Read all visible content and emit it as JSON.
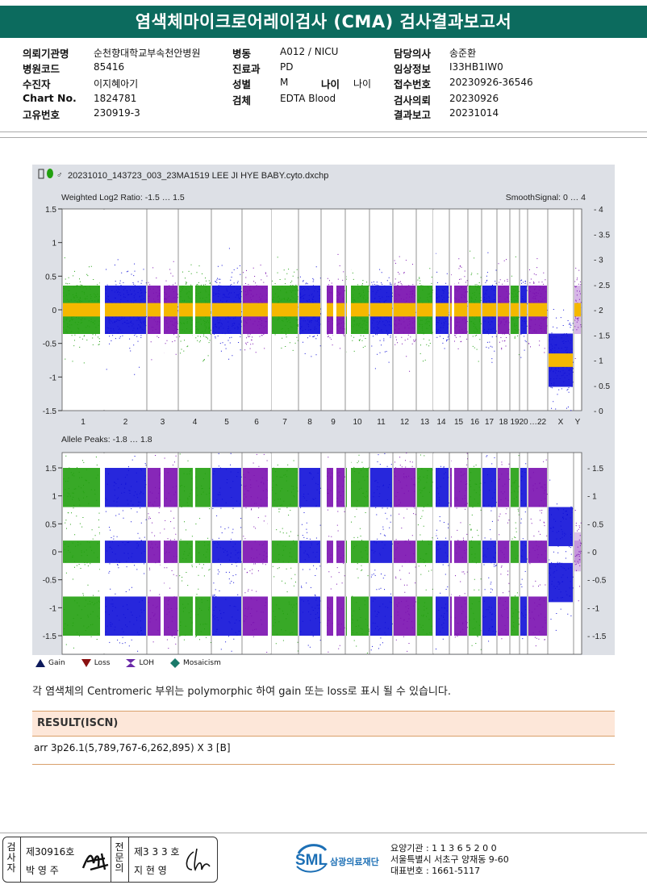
{
  "title": "염색체마이크로어레이검사 (CMA) 검사결과보고서",
  "info": {
    "col1": [
      {
        "label": "의뢰기관명",
        "value": "순천향대학교부속천안병원"
      },
      {
        "label": "병원코드",
        "value": "85416"
      },
      {
        "label": "수진자",
        "value": "이지혜아기"
      },
      {
        "label": "Chart No.",
        "value": "1824781"
      },
      {
        "label": "고유번호",
        "value": "230919-3"
      }
    ],
    "col2": [
      {
        "label": "병동",
        "value": "A012 / NICU"
      },
      {
        "label": "진료과",
        "value": "PD"
      },
      {
        "label": "성별",
        "value": "M"
      },
      {
        "label": "검체",
        "value": "EDTA Blood"
      }
    ],
    "age_label": "나이",
    "age_value": "나이",
    "col3": [
      {
        "label": "담당의사",
        "value": "송준환"
      },
      {
        "label": "임상정보",
        "value": "I33HB1IW0"
      },
      {
        "label": "접수번호",
        "value": "20230926-36546"
      },
      {
        "label": "검사의뢰",
        "value": "20230926"
      },
      {
        "label": "결과보고",
        "value": "20231014"
      }
    ]
  },
  "plot": {
    "file_name": "20231010_143723_003_23MA1519 LEE JI HYE BABY.cyto.dxchp",
    "top_label": "Weighted Log2 Ratio: -1.5 … 1.5",
    "top_right_label": "SmoothSignal: 0 … 4",
    "bottom_label": "Allele Peaks: -1.8 … 1.8",
    "top_left_ticks": [
      "1.5",
      "1",
      "0.5",
      "0",
      "-0.5",
      "-1",
      "-1.5"
    ],
    "top_right_ticks": [
      "4",
      "3.5",
      "3",
      "2.5",
      "2",
      "1.5",
      "1",
      "0.5",
      "0"
    ],
    "bottom_left_ticks": [
      "1.5",
      "1",
      "0.5",
      "0",
      "-0.5",
      "-1",
      "-1.5"
    ],
    "bottom_right_ticks": [
      "1.5",
      "1",
      "0.5",
      "0",
      "-0.5",
      "-1",
      "-1.5"
    ],
    "chromosomes": [
      "1",
      "2",
      "3",
      "4",
      "5",
      "6",
      "7",
      "8",
      "9",
      "10",
      "11",
      "12",
      "13",
      "14",
      "15",
      "16",
      "17",
      "18",
      "19",
      "20",
      "…22",
      "X",
      "Y"
    ],
    "colors": {
      "green": "#22a010",
      "blue": "#1010d8",
      "purple": "#7a10b0",
      "yellow": "#f5b800",
      "bg": "#dde0e6"
    }
  },
  "legend": [
    {
      "icon": "gain-icon",
      "label": "Gain"
    },
    {
      "icon": "loss-icon",
      "label": "Loss"
    },
    {
      "icon": "loh-icon",
      "label": "LOH"
    },
    {
      "icon": "mosaicism-icon",
      "label": "Mosaicism"
    }
  ],
  "note": "각 염색체의 Centromeric 부위는 polymorphic 하여 gain 또는 loss로 표시 될 수 있습니다.",
  "result": {
    "heading": "RESULT(ISCN)",
    "value": "arr 3p26.1(5,789,767-6,262,895) X 3 [B]"
  },
  "signature": {
    "left_vertical": "검사자",
    "left_number": "제30916호",
    "left_name": "박 영 주",
    "right_vertical": "전문의",
    "right_number": "제3 3 3 호",
    "right_name": "지 현 영"
  },
  "footer": {
    "logo_text": "SML",
    "logo_sub": "삼광의료재단",
    "line1": "요양기관 : 1 1 3 6 5 2 0 0",
    "line2": "서울특별시 서초구 양재동 9-60",
    "line3": "대표번호 : 1661-5117"
  }
}
